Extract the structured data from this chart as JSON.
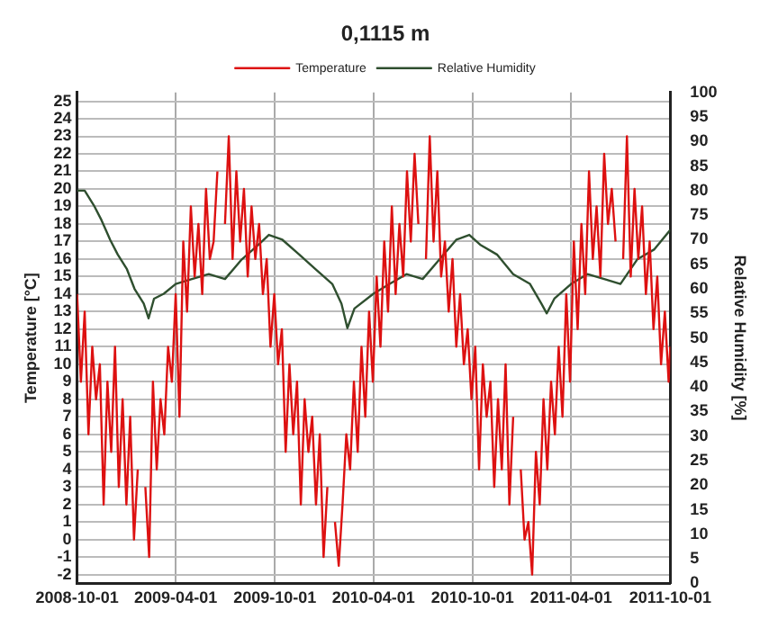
{
  "chart_data": {
    "type": "line",
    "title": "0,1115 m",
    "ylabel": "Temperature [°C]",
    "y2label": "Relative Humidity [%]",
    "xlim": [
      "2008-10-01",
      "2011-10-01"
    ],
    "xticks": [
      "2008-10-01",
      "2009-04-01",
      "2009-10-01",
      "2010-04-01",
      "2010-10-01",
      "2011-04-01",
      "2011-10-01"
    ],
    "ylim": [
      -2.5,
      25.5
    ],
    "yticks": [
      -2,
      -1,
      0,
      1,
      2,
      3,
      4,
      5,
      6,
      7,
      8,
      9,
      10,
      11,
      12,
      13,
      14,
      15,
      16,
      17,
      18,
      19,
      20,
      21,
      22,
      23,
      24,
      25
    ],
    "y2lim": [
      0,
      100
    ],
    "y2ticks": [
      0,
      5,
      10,
      15,
      20,
      25,
      30,
      35,
      40,
      45,
      50,
      55,
      60,
      65,
      70,
      75,
      80,
      85,
      90,
      95,
      100
    ],
    "grid": true,
    "legend": "top",
    "marker": "none",
    "line_style": "solid",
    "series": [
      {
        "name": "Temperature",
        "color": "#dd1111",
        "x": [
          "2008-10-01",
          "2008-10-08",
          "2008-10-15",
          "2008-10-22",
          "2008-10-29",
          "2008-11-05",
          "2008-11-12",
          "2008-11-19",
          "2008-11-26",
          "2008-12-03",
          "2008-12-10",
          "2008-12-17",
          "2008-12-24",
          "2008-12-31",
          "2009-01-07",
          "2009-01-14",
          "2009-01-21",
          "2009-01-28",
          "2009-02-04",
          "2009-02-11",
          "2009-02-18",
          "2009-02-25",
          "2009-03-04",
          "2009-03-11",
          "2009-03-18",
          "2009-03-25",
          "2009-04-01",
          "2009-04-08",
          "2009-04-15",
          "2009-04-22",
          "2009-04-29",
          "2009-05-06",
          "2009-05-13",
          "2009-05-20",
          "2009-05-27",
          "2009-06-03",
          "2009-06-10",
          "2009-06-17",
          "2009-06-24",
          "2009-07-01",
          "2009-07-08",
          "2009-07-15",
          "2009-07-22",
          "2009-07-29",
          "2009-08-05",
          "2009-08-12",
          "2009-08-19",
          "2009-08-26",
          "2009-09-02",
          "2009-09-09",
          "2009-09-16",
          "2009-09-23",
          "2009-09-30",
          "2009-10-07",
          "2009-10-14",
          "2009-10-21",
          "2009-10-28",
          "2009-11-04",
          "2009-11-11",
          "2009-11-18",
          "2009-11-25",
          "2009-12-02",
          "2009-12-09",
          "2009-12-16",
          "2009-12-23",
          "2009-12-30",
          "2010-01-06",
          "2010-01-13",
          "2010-01-20",
          "2010-01-27",
          "2010-02-03",
          "2010-02-10",
          "2010-02-17",
          "2010-02-24",
          "2010-03-03",
          "2010-03-10",
          "2010-03-17",
          "2010-03-24",
          "2010-03-31",
          "2010-04-07",
          "2010-04-14",
          "2010-04-21",
          "2010-04-28",
          "2010-05-05",
          "2010-05-12",
          "2010-05-19",
          "2010-05-26",
          "2010-06-02",
          "2010-06-09",
          "2010-06-16",
          "2010-06-23",
          "2010-06-30",
          "2010-07-07",
          "2010-07-14",
          "2010-07-21",
          "2010-07-28",
          "2010-08-04",
          "2010-08-11",
          "2010-08-18",
          "2010-08-25",
          "2010-09-01",
          "2010-09-08",
          "2010-09-15",
          "2010-09-22",
          "2010-09-29",
          "2010-10-06",
          "2010-10-13",
          "2010-10-20",
          "2010-10-27",
          "2010-11-03",
          "2010-11-10",
          "2010-11-17",
          "2010-11-24",
          "2010-12-01",
          "2010-12-08",
          "2010-12-15",
          "2010-12-22",
          "2010-12-29",
          "2011-01-05",
          "2011-01-12",
          "2011-01-19",
          "2011-01-26",
          "2011-02-02",
          "2011-02-09",
          "2011-02-16",
          "2011-02-23",
          "2011-03-02",
          "2011-03-09",
          "2011-03-16",
          "2011-03-23",
          "2011-03-30",
          "2011-04-06",
          "2011-04-13",
          "2011-04-20",
          "2011-04-27",
          "2011-05-04",
          "2011-05-11",
          "2011-05-18",
          "2011-05-25",
          "2011-06-01",
          "2011-06-08",
          "2011-06-15",
          "2011-06-22",
          "2011-06-29",
          "2011-07-06",
          "2011-07-13",
          "2011-07-20",
          "2011-07-27",
          "2011-08-03",
          "2011-08-10",
          "2011-08-17",
          "2011-08-24",
          "2011-08-31",
          "2011-09-07",
          "2011-09-14",
          "2011-09-21",
          "2011-09-28",
          "2011-10-01"
        ],
        "values": [
          14,
          9,
          13,
          6,
          11,
          8,
          10,
          2,
          9,
          5,
          11,
          3,
          8,
          2,
          7,
          0,
          4,
          null,
          3,
          -1,
          9,
          4,
          8,
          6,
          11,
          9,
          14,
          7,
          17,
          13,
          19,
          15,
          18,
          14,
          20,
          16,
          17,
          21,
          null,
          18,
          23,
          16,
          21,
          17,
          20,
          15,
          19,
          16,
          18,
          14,
          16,
          11,
          14,
          10,
          12,
          5,
          10,
          6,
          9,
          2,
          8,
          5,
          7,
          2,
          6,
          -1,
          3,
          null,
          1,
          -1.5,
          2,
          6,
          4,
          9,
          5,
          11,
          7,
          13,
          9,
          15,
          11,
          17,
          13,
          19,
          14,
          18,
          15,
          21,
          17,
          22,
          18,
          null,
          16,
          23,
          17,
          21,
          15,
          17,
          13,
          16,
          11,
          14,
          10,
          12,
          8,
          11,
          4,
          10,
          7,
          9,
          3,
          8,
          4,
          10,
          2,
          7,
          null,
          4,
          0,
          1,
          -2,
          5,
          2,
          8,
          4,
          9,
          6,
          11,
          7,
          14,
          9,
          17,
          12,
          18,
          14,
          21,
          16,
          19,
          15,
          22,
          18,
          20,
          17,
          null,
          16,
          23,
          15,
          20,
          16,
          19,
          14,
          17,
          12,
          15,
          10,
          13,
          9,
          11
        ]
      },
      {
        "name": "Relative Humidity",
        "color": "#2f4f2f",
        "axis": "y2",
        "x": [
          "2008-10-01",
          "2008-10-15",
          "2008-11-01",
          "2008-11-15",
          "2008-12-01",
          "2008-12-15",
          "2009-01-01",
          "2009-01-15",
          "2009-02-01",
          "2009-02-10",
          "2009-02-20",
          "2009-03-10",
          "2009-04-01",
          "2009-05-01",
          "2009-06-01",
          "2009-07-01",
          "2009-08-01",
          "2009-09-01",
          "2009-09-20",
          "2009-10-15",
          "2009-11-15",
          "2009-12-15",
          "2010-01-15",
          "2010-02-01",
          "2010-02-12",
          "2010-02-25",
          "2010-04-01",
          "2010-05-01",
          "2010-06-01",
          "2010-07-01",
          "2010-08-01",
          "2010-09-01",
          "2010-09-25",
          "2010-10-15",
          "2010-11-15",
          "2010-12-15",
          "2011-01-15",
          "2011-02-05",
          "2011-02-15",
          "2011-03-01",
          "2011-04-01",
          "2011-05-01",
          "2011-06-01",
          "2011-07-01",
          "2011-08-01",
          "2011-09-01",
          "2011-10-01"
        ],
        "values": [
          80,
          80,
          77,
          74,
          70,
          67,
          64,
          60,
          57,
          54,
          58,
          59,
          61,
          62,
          63,
          62,
          66,
          69,
          71,
          70,
          67,
          64,
          61,
          57,
          52,
          56,
          59,
          61,
          63,
          62,
          66,
          70,
          71,
          69,
          67,
          63,
          61,
          57,
          55,
          58,
          61,
          63,
          62,
          61,
          66,
          68,
          72
        ]
      }
    ]
  }
}
